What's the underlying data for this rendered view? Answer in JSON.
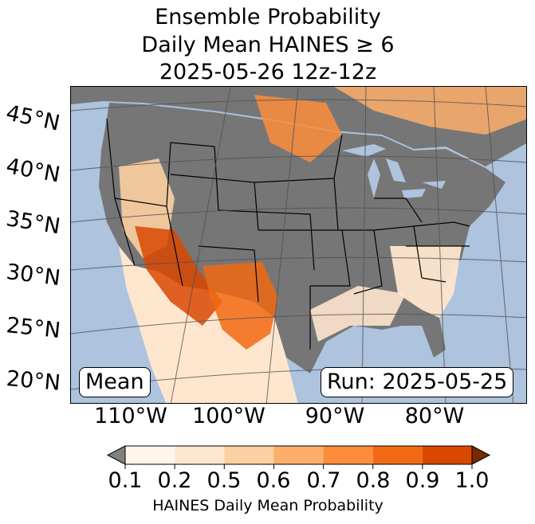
{
  "title": {
    "line1": "Ensemble Probability",
    "line2": "Daily Mean HAINES ≥ 6",
    "line3": "2025-05-26 12z-12z"
  },
  "map": {
    "latitude_labels": [
      "45°N",
      "40°N",
      "35°N",
      "30°N",
      "25°N",
      "20°N"
    ],
    "longitude_labels": [
      "110°W",
      "100°W",
      "90°W",
      "80°W"
    ],
    "stat_box": "Mean",
    "run_box": "Run: 2025-05-25",
    "colors": {
      "ocean": "#adc3de",
      "land_no_data": "#767676",
      "border_lines": "#000000",
      "graticule": "#505050"
    }
  },
  "colorbar": {
    "label": "HAINES Daily Mean Probability",
    "tick_labels": [
      "0.1",
      "0.2",
      "0.5",
      "0.6",
      "0.7",
      "0.8",
      "0.9",
      "1.0"
    ],
    "under_color": "#808080",
    "over_color": "#7a2a00",
    "colors": [
      "#fff5eb",
      "#fee6ce",
      "#fdd0a2",
      "#fdae6b",
      "#fd8d3c",
      "#f16913",
      "#d94801"
    ]
  },
  "overlay_regions": [
    {
      "name": "great-basin-shading",
      "level": 0.5
    },
    {
      "name": "southwest-desert-shading",
      "level": 0.9
    },
    {
      "name": "trans-pecos-shading",
      "level": 0.8
    },
    {
      "name": "northern-plains-shading",
      "level": 0.7
    },
    {
      "name": "canada-shading",
      "level": 0.6
    },
    {
      "name": "southeast-shading",
      "level": 0.2
    }
  ]
}
